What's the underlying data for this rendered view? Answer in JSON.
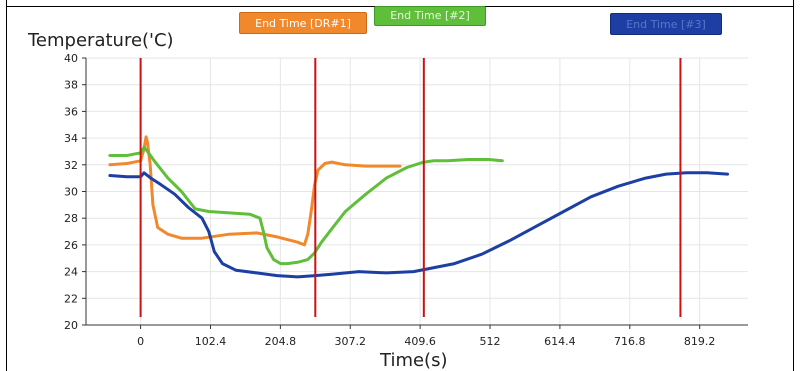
{
  "chart_data": {
    "type": "line",
    "ylabel": "Temperature('C)",
    "xlabel": "Time(s)",
    "xlim": [
      -80,
      890
    ],
    "ylim": [
      20,
      40
    ],
    "x_ticks": [
      0,
      102.4,
      204.8,
      307.2,
      409.6,
      512,
      614.4,
      716.8,
      819.2
    ],
    "x_tick_labels": [
      "0",
      "102.4",
      "204.8",
      "307.2",
      "409.6",
      "512",
      "614.4",
      "716.8",
      "819.2"
    ],
    "y_ticks": [
      20,
      22,
      24,
      26,
      28,
      30,
      32,
      34,
      36,
      38,
      40
    ],
    "y_tick_labels": [
      "20",
      "22",
      "24",
      "26",
      "28",
      "30",
      "32",
      "34",
      "36",
      "38",
      "40"
    ],
    "grid": true,
    "markers": [
      {
        "x": 0,
        "color": "#cc1111"
      },
      {
        "x": 256,
        "color": "#cc1111"
      },
      {
        "x": 415,
        "color": "#cc1111"
      },
      {
        "x": 791,
        "color": "#cc1111"
      }
    ],
    "end_time_tags": [
      {
        "label": "End Time [DR#1]",
        "color": "#f1892c"
      },
      {
        "label": "End Time [#2]",
        "color": "#5fbf3a"
      },
      {
        "label": "End Time [#3]",
        "color": "#1d3fa3"
      }
    ],
    "series": [
      {
        "color": "#f1892c",
        "x": [
          -45,
          -20,
          0,
          5,
          8,
          10,
          14,
          18,
          25,
          40,
          60,
          90,
          130,
          170,
          200,
          230,
          240,
          245,
          250,
          255,
          260,
          270,
          280,
          300,
          330,
          360,
          380
        ],
        "y": [
          32.0,
          32.1,
          32.3,
          33.2,
          34.1,
          33.7,
          32.0,
          29.0,
          27.3,
          26.8,
          26.5,
          26.5,
          26.8,
          26.9,
          26.6,
          26.2,
          26.0,
          26.8,
          28.5,
          30.5,
          31.6,
          32.1,
          32.2,
          32.0,
          31.9,
          31.9,
          31.9
        ]
      },
      {
        "color": "#5fbf3a",
        "x": [
          -45,
          -20,
          0,
          5,
          10,
          20,
          40,
          60,
          80,
          100,
          130,
          160,
          175,
          180,
          185,
          195,
          205,
          215,
          230,
          245,
          255,
          265,
          280,
          300,
          330,
          360,
          390,
          415,
          430,
          450,
          480,
          510,
          530
        ],
        "y": [
          32.7,
          32.7,
          32.9,
          33.3,
          33.0,
          32.3,
          31.0,
          30.0,
          28.7,
          28.5,
          28.4,
          28.3,
          28.0,
          27.0,
          25.8,
          24.9,
          24.6,
          24.6,
          24.7,
          24.9,
          25.4,
          26.2,
          27.2,
          28.5,
          29.8,
          31.0,
          31.8,
          32.2,
          32.3,
          32.3,
          32.4,
          32.4,
          32.3
        ]
      },
      {
        "color": "#1d3fa3",
        "x": [
          -45,
          -20,
          0,
          5,
          15,
          30,
          50,
          70,
          90,
          100,
          108,
          120,
          140,
          170,
          200,
          230,
          256,
          280,
          320,
          360,
          400,
          430,
          460,
          500,
          540,
          580,
          620,
          660,
          700,
          740,
          770,
          800,
          830,
          860
        ],
        "y": [
          31.2,
          31.1,
          31.1,
          31.4,
          31.0,
          30.5,
          29.8,
          28.8,
          28.0,
          27.0,
          25.5,
          24.6,
          24.1,
          23.9,
          23.7,
          23.6,
          23.7,
          23.8,
          24.0,
          23.9,
          24.0,
          24.3,
          24.6,
          25.3,
          26.3,
          27.4,
          28.5,
          29.6,
          30.4,
          31.0,
          31.3,
          31.4,
          31.4,
          31.3
        ]
      }
    ]
  }
}
